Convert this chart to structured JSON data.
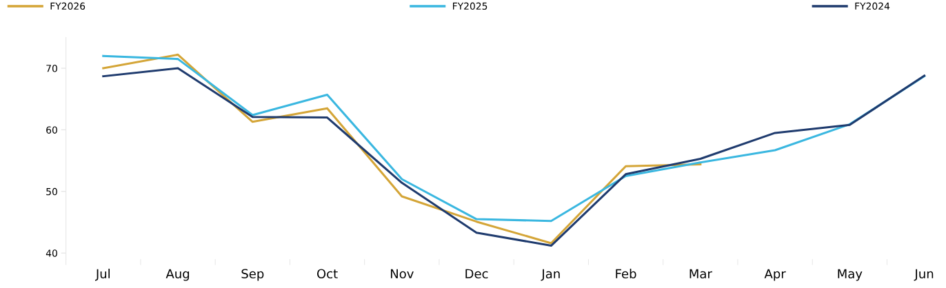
{
  "chart_data": {
    "type": "line",
    "categories": [
      "Jul",
      "Aug",
      "Sep",
      "Oct",
      "Nov",
      "Dec",
      "Jan",
      "Feb",
      "Mar",
      "Apr",
      "May",
      "Jun"
    ],
    "series": [
      {
        "name": "FY2026",
        "color": "#d4a537",
        "values": [
          70.0,
          72.2,
          61.3,
          63.5,
          49.2,
          45.1,
          41.6,
          54.1,
          54.4,
          null,
          null,
          null
        ]
      },
      {
        "name": "FY2025",
        "color": "#3ab7e0",
        "values": [
          72.0,
          71.5,
          62.4,
          65.7,
          52.0,
          45.5,
          45.2,
          52.5,
          54.7,
          56.7,
          60.9,
          68.7
        ]
      },
      {
        "name": "FY2024",
        "color": "#1f3b6e",
        "values": [
          68.7,
          70.0,
          62.1,
          62.0,
          51.4,
          43.3,
          41.2,
          52.8,
          55.3,
          59.5,
          60.8,
          68.8
        ]
      }
    ],
    "ylim": [
      39,
      75
    ],
    "yticks": [
      40,
      50,
      60,
      70
    ],
    "grid": false,
    "legend": "top",
    "marker": "none",
    "line_style": "solid"
  }
}
